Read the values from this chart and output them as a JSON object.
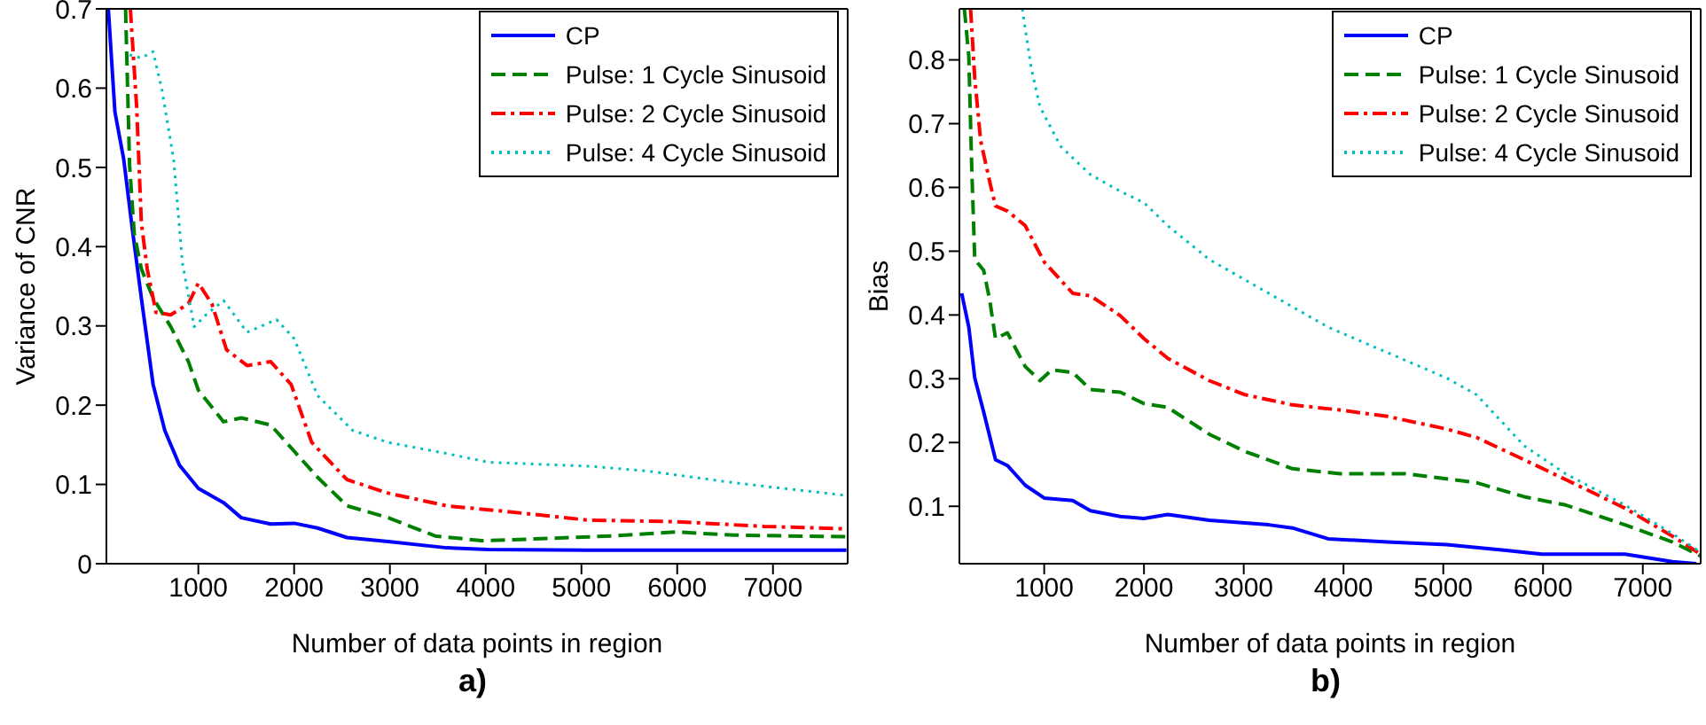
{
  "chart_data": [
    {
      "type": "line",
      "xlabel": "Number of data points in region",
      "ylabel": "Variance of CNR",
      "annotations": [
        "a)"
      ],
      "xlim": [
        40,
        7780
      ],
      "ylim": [
        0,
        0.7
      ],
      "xticks": [
        1000,
        2000,
        3000,
        4000,
        5000,
        6000,
        7000
      ],
      "yticks": [
        0,
        0.1,
        0.2,
        0.3,
        0.4,
        0.5,
        0.6,
        0.7
      ],
      "grid": false,
      "legend": "top right",
      "marker": "none",
      "series": [
        {
          "name": "CP",
          "color": "#0000ff",
          "line_style": "solid",
          "x": [
            60,
            129,
            221,
            313,
            405,
            528,
            650,
            804,
            1000,
            1264,
            1448,
            1755,
            2000,
            2245,
            2552,
            2982,
            3595,
            4025,
            5067,
            7767
          ],
          "values": [
            0.7,
            0.57,
            0.51,
            0.42,
            0.335,
            0.226,
            0.168,
            0.124,
            0.095,
            0.077,
            0.058,
            0.05,
            0.051,
            0.045,
            0.033,
            0.028,
            0.02,
            0.018,
            0.017,
            0.017
          ]
        },
        {
          "name": "Pulse: 1 Cycle Sinusoid",
          "color": "#008000",
          "line_style": "dashed",
          "x": [
            240,
            282,
            331,
            405,
            528,
            712,
            896,
            1000,
            1264,
            1448,
            1755,
            2000,
            2245,
            2552,
            2982,
            3472,
            3963,
            4454,
            5313,
            5988,
            6601,
            7767
          ],
          "values": [
            0.7,
            0.503,
            0.416,
            0.372,
            0.335,
            0.299,
            0.255,
            0.219,
            0.179,
            0.184,
            0.175,
            0.142,
            0.109,
            0.073,
            0.058,
            0.035,
            0.029,
            0.031,
            0.035,
            0.04,
            0.036,
            0.034
          ]
        },
        {
          "name": "Pulse: 2 Cycle Sinusoid",
          "color": "#ff0000",
          "line_style": "dashdot",
          "x": [
            290,
            356,
            405,
            466,
            558,
            712,
            896,
            1000,
            1141,
            1294,
            1509,
            1755,
            1969,
            2184,
            2552,
            2982,
            3595,
            4209,
            5067,
            5988,
            6908,
            7767
          ],
          "values": [
            0.7,
            0.576,
            0.43,
            0.372,
            0.317,
            0.314,
            0.328,
            0.354,
            0.328,
            0.27,
            0.25,
            0.255,
            0.226,
            0.153,
            0.106,
            0.089,
            0.073,
            0.066,
            0.055,
            0.053,
            0.047,
            0.044
          ]
        },
        {
          "name": "Pulse: 4 Cycle Sinusoid",
          "color": "#00bfbf",
          "line_style": "dotted",
          "x": [
            282,
            405,
            528,
            620,
            742,
            834,
            957,
            1080,
            1264,
            1509,
            1816,
            2000,
            2245,
            2613,
            2982,
            3595,
            4025,
            5067,
            5681,
            6601,
            7767
          ],
          "values": [
            0.642,
            0.638,
            0.646,
            0.598,
            0.51,
            0.379,
            0.299,
            0.314,
            0.332,
            0.292,
            0.308,
            0.284,
            0.212,
            0.168,
            0.153,
            0.139,
            0.128,
            0.123,
            0.117,
            0.102,
            0.086
          ]
        }
      ]
    },
    {
      "type": "line",
      "xlabel": "Number of data points in region",
      "ylabel": "Bias",
      "annotations": [
        "b)"
      ],
      "xlim": [
        150,
        7580
      ],
      "ylim": [
        0.01,
        0.88
      ],
      "xticks": [
        1000,
        2000,
        3000,
        4000,
        5000,
        6000,
        7000
      ],
      "yticks": [
        0.1,
        0.2,
        0.3,
        0.4,
        0.5,
        0.6,
        0.7,
        0.8
      ],
      "grid": false,
      "legend": "top right",
      "marker": "none",
      "series": [
        {
          "name": "CP",
          "color": "#0000ff",
          "line_style": "solid",
          "x": [
            173,
            244,
            304,
            393,
            512,
            631,
            810,
            1000,
            1286,
            1464,
            1762,
            2000,
            2238,
            2655,
            3250,
            3488,
            3845,
            4440,
            5036,
            5631,
            5988,
            6821,
            7298,
            7536
          ],
          "values": [
            0.434,
            0.381,
            0.301,
            0.248,
            0.173,
            0.164,
            0.133,
            0.113,
            0.109,
            0.093,
            0.084,
            0.081,
            0.087,
            0.078,
            0.071,
            0.066,
            0.049,
            0.044,
            0.04,
            0.031,
            0.025,
            0.025,
            0.013,
            0.01
          ]
        },
        {
          "name": "Pulse: 1 Cycle Sinusoid",
          "color": "#008000",
          "line_style": "dashed",
          "x": [
            200,
            244,
            274,
            304,
            393,
            452,
            512,
            631,
            810,
            958,
            1077,
            1286,
            1464,
            1762,
            2000,
            2238,
            2655,
            3012,
            3488,
            3964,
            4619,
            5036,
            5333,
            5810,
            6226,
            6821,
            7298,
            7580
          ],
          "values": [
            0.88,
            0.806,
            0.629,
            0.487,
            0.47,
            0.425,
            0.363,
            0.372,
            0.319,
            0.297,
            0.314,
            0.31,
            0.283,
            0.279,
            0.261,
            0.255,
            0.213,
            0.186,
            0.159,
            0.151,
            0.151,
            0.143,
            0.137,
            0.115,
            0.102,
            0.071,
            0.044,
            0.022
          ]
        },
        {
          "name": "Pulse: 2 Cycle Sinusoid",
          "color": "#ff0000",
          "line_style": "dashdot",
          "x": [
            262,
            304,
            363,
            464,
            512,
            631,
            810,
            1000,
            1286,
            1464,
            1762,
            2000,
            2238,
            2655,
            3012,
            3488,
            3964,
            4440,
            5036,
            5333,
            5810,
            6226,
            6821,
            7298,
            7580
          ],
          "values": [
            0.88,
            0.771,
            0.673,
            0.602,
            0.571,
            0.563,
            0.54,
            0.483,
            0.434,
            0.43,
            0.399,
            0.363,
            0.332,
            0.297,
            0.275,
            0.259,
            0.251,
            0.241,
            0.221,
            0.208,
            0.173,
            0.142,
            0.097,
            0.053,
            0.025
          ]
        },
        {
          "name": "Pulse: 4 Cycle Sinusoid",
          "color": "#00bfbf",
          "line_style": "dotted",
          "x": [
            780,
            869,
            958,
            1167,
            1464,
            1762,
            2000,
            2238,
            2655,
            3250,
            3845,
            4440,
            5036,
            5333,
            5810,
            6226,
            6821,
            7298,
            7580
          ],
          "values": [
            0.88,
            0.788,
            0.726,
            0.664,
            0.62,
            0.594,
            0.576,
            0.54,
            0.487,
            0.434,
            0.381,
            0.341,
            0.301,
            0.275,
            0.195,
            0.151,
            0.102,
            0.057,
            0.028
          ]
        }
      ]
    }
  ]
}
